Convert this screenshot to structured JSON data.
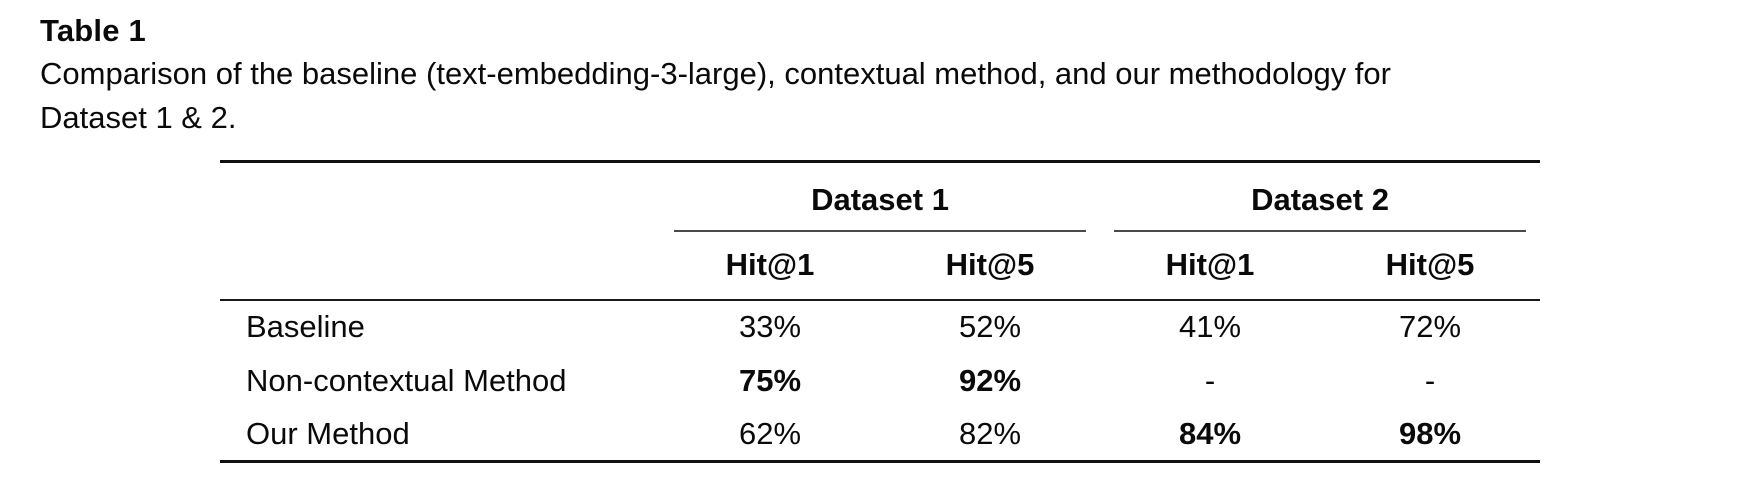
{
  "page": {
    "background_color": "#ffffff",
    "text_color": "#0a0a0a"
  },
  "header": {
    "title": "Table 1",
    "caption_lines": [
      "Comparison of the baseline (text-embedding-3-large), contextual method, and our methodology for",
      "Dataset 1 & 2."
    ]
  },
  "table": {
    "rule_color": "#111111",
    "cmidrule_color": "#4a4a4a",
    "group_headers": [
      {
        "label": "Dataset 1"
      },
      {
        "label": "Dataset 2"
      }
    ],
    "sub_headers": [
      "Hit@1",
      "Hit@5",
      "Hit@1",
      "Hit@5"
    ],
    "rows": [
      {
        "label": "Baseline",
        "cells": [
          "33%",
          "52%",
          "41%",
          "72%"
        ],
        "bold": [
          false,
          false,
          false,
          false
        ]
      },
      {
        "label": "Non-contextual Method",
        "cells": [
          "75%",
          "92%",
          "-",
          "-"
        ],
        "bold": [
          true,
          true,
          false,
          false
        ]
      },
      {
        "label": "Our Method",
        "cells": [
          "62%",
          "82%",
          "84%",
          "98%"
        ],
        "bold": [
          false,
          false,
          true,
          true
        ]
      }
    ]
  }
}
